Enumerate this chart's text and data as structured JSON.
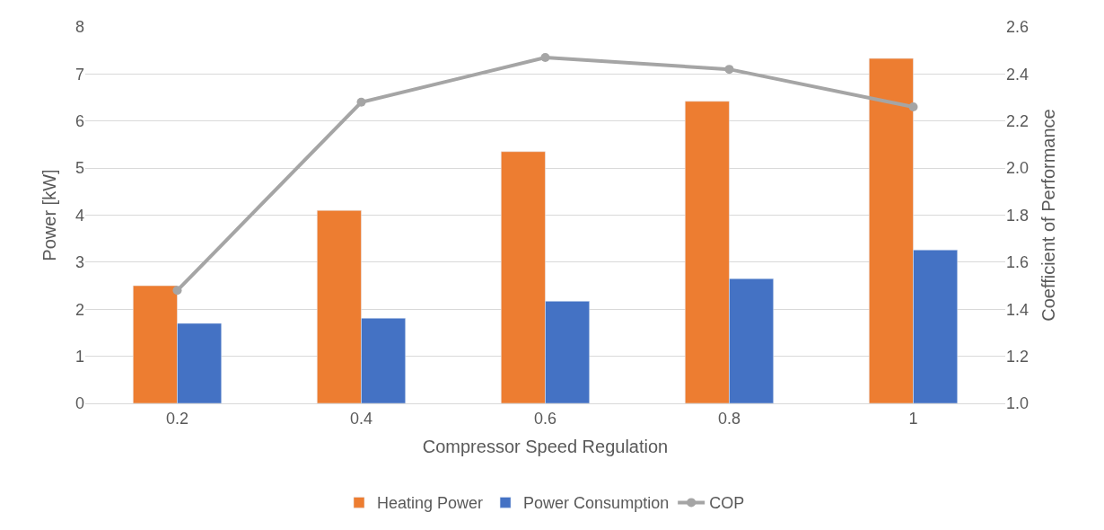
{
  "chart_data": {
    "type": "bar",
    "xlabel": "Compressor Speed Regulation",
    "ylabel": "Power [kW]",
    "y2label": "Coefficient of Performance",
    "categories": [
      "0.2",
      "0.4",
      "0.6",
      "0.8",
      "1"
    ],
    "series": [
      {
        "name": "Heating Power",
        "color": "#ed7d31",
        "values": [
          2.5,
          4.1,
          5.35,
          6.42,
          7.33
        ]
      },
      {
        "name": "Power Consumption",
        "color": "#4472c4",
        "values": [
          1.7,
          1.81,
          2.17,
          2.65,
          3.26
        ]
      },
      {
        "name": "COP",
        "type": "line",
        "axis": "y2",
        "color": "#a5a5a5",
        "marker": "circle",
        "values": [
          1.48,
          2.28,
          2.47,
          2.42,
          2.26
        ]
      }
    ],
    "ylim": [
      0,
      8
    ],
    "yticks": [
      0,
      1,
      2,
      3,
      4,
      5,
      6,
      7,
      8
    ],
    "y2lim": [
      1.0,
      2.6
    ],
    "y2ticks": [
      {
        "value": 1.0,
        "label": "1.0"
      },
      {
        "value": 1.2,
        "label": "1.2"
      },
      {
        "value": 1.4,
        "label": "1.4"
      },
      {
        "value": 1.6,
        "label": "1.6"
      },
      {
        "value": 1.8,
        "label": "1.8"
      },
      {
        "value": 2.0,
        "label": "2.0"
      },
      {
        "value": 2.2,
        "label": "2.2"
      },
      {
        "value": 2.4,
        "label": "2.4"
      },
      {
        "value": 2.6,
        "label": "2.6"
      }
    ],
    "grid": "y",
    "legend": "bottom"
  }
}
